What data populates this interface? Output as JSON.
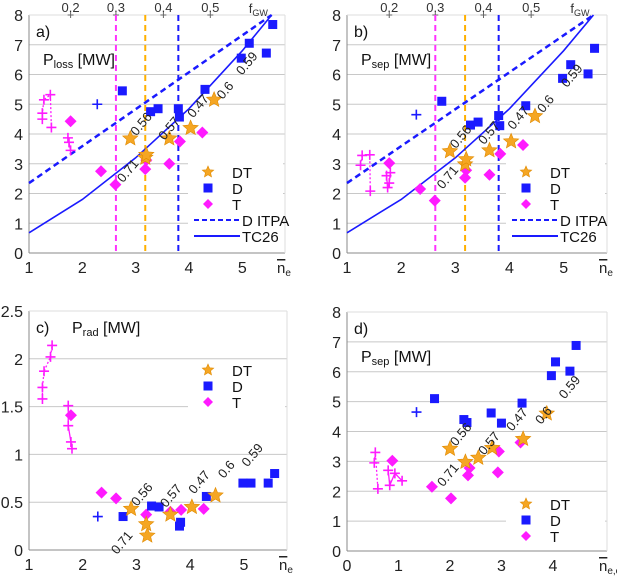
{
  "colors": {
    "DT": "#f5a623",
    "D": "#1a1aff",
    "T": "#ff1aff",
    "grid": "#c8c8c8",
    "axis": "#888888",
    "vline_T": "#ff33ff",
    "vline_DT": "#ffb000",
    "vline_D": "#1a1aff"
  },
  "chart_data": [
    {
      "type": "scatter",
      "panel": "a)",
      "title_main": "P",
      "title_sub": "loss",
      "title_unit": " [MW]",
      "xlabel": "n",
      "xlabel_sub": "e",
      "xlim": [
        1,
        5.8
      ],
      "ylim": [
        0,
        8
      ],
      "xticks": [
        1,
        2,
        3,
        4,
        5
      ],
      "yticks": [
        0,
        1,
        2,
        3,
        4,
        5,
        6,
        7,
        8
      ],
      "grid": true,
      "legend": "bottom-right",
      "top_axis": {
        "label": "f",
        "label_sub": "GW",
        "ticks": [
          {
            "label": "0.2",
            "x": 1.78
          },
          {
            "label": "0.3",
            "x": 2.63
          },
          {
            "label": "0.4",
            "x": 3.52
          },
          {
            "label": "0.5",
            "x": 4.4
          }
        ],
        "label_x": 5.3
      },
      "vlines": [
        {
          "x": 2.63,
          "color": "vline_T"
        },
        {
          "x": 3.18,
          "color": "vline_DT"
        },
        {
          "x": 3.8,
          "color": "vline_D"
        }
      ],
      "series": [
        {
          "name": "DT",
          "marker": "star",
          "points": [
            [
              2.9,
              3.85,
              "0.56"
            ],
            [
              3.18,
              3.2,
              "0.71"
            ],
            [
              3.2,
              3.3,
              "0.57"
            ],
            [
              3.63,
              3.85,
              "0.47"
            ],
            [
              4.03,
              4.2,
              "0.6"
            ],
            [
              4.47,
              5.15,
              "0.59"
            ]
          ]
        },
        {
          "name": "D",
          "marker": "square",
          "points": [
            [
              2.75,
              5.45
            ],
            [
              3.28,
              4.75
            ],
            [
              3.42,
              4.85
            ],
            [
              3.8,
              4.85
            ],
            [
              3.82,
              4.57
            ],
            [
              4.3,
              5.5
            ],
            [
              4.98,
              6.55
            ],
            [
              5.13,
              7.05
            ],
            [
              5.45,
              6.72
            ],
            [
              5.57,
              7.68
            ]
          ]
        },
        {
          "name": "T",
          "marker": "diamond",
          "points": [
            [
              1.78,
              4.43
            ],
            [
              2.35,
              2.75
            ],
            [
              2.62,
              2.3
            ],
            [
              3.18,
              2.82
            ],
            [
              3.2,
              3.12
            ],
            [
              3.63,
              3.0
            ],
            [
              3.83,
              3.75
            ],
            [
              4.25,
              4.05
            ]
          ]
        },
        {
          "name": "D ITPA",
          "line": "dashed",
          "points": [
            [
              1,
              2.35
            ],
            [
              5.55,
              8
            ]
          ]
        },
        {
          "name": "TC26",
          "line": "solid",
          "points": [
            [
              1,
              0.68
            ],
            [
              2,
              1.8
            ],
            [
              3,
              3.2
            ],
            [
              4,
              4.85
            ],
            [
              5,
              6.8
            ],
            [
              5.55,
              8
            ]
          ]
        }
      ],
      "extra": [
        {
          "marker": "cross",
          "color": "T",
          "line": "dotted",
          "points": [
            [
              1.25,
              4.5
            ],
            [
              1.25,
              4.7
            ],
            [
              1.28,
              5.15
            ],
            [
              1.4,
              5.32
            ],
            [
              1.42,
              4.22
            ]
          ]
        },
        {
          "marker": "cross",
          "color": "T",
          "line": "solid",
          "points": [
            [
              1.73,
              3.87
            ],
            [
              1.75,
              3.72
            ],
            [
              1.78,
              3.45
            ]
          ]
        },
        {
          "marker": "cross",
          "color": "D",
          "points": [
            [
              2.28,
              5.0
            ]
          ]
        }
      ]
    },
    {
      "type": "scatter",
      "panel": "b)",
      "title_main": "P",
      "title_sub": "sep",
      "title_unit": " [MW]",
      "xlabel": "n",
      "xlabel_sub": "e",
      "xlim": [
        1,
        5.8
      ],
      "ylim": [
        0,
        8
      ],
      "xticks": [
        1,
        2,
        3,
        4,
        5
      ],
      "yticks": [
        0,
        1,
        2,
        3,
        4,
        5,
        6,
        7,
        8
      ],
      "grid": true,
      "legend": "bottom-right",
      "top_axis": {
        "label": "f",
        "label_sub": "GW",
        "ticks": [
          {
            "label": "0.2",
            "x": 1.78
          },
          {
            "label": "0.3",
            "x": 2.63
          },
          {
            "label": "0.4",
            "x": 3.52
          },
          {
            "label": "0.5",
            "x": 4.4
          }
        ],
        "label_x": 5.3
      },
      "vlines": [
        {
          "x": 2.63,
          "color": "vline_T"
        },
        {
          "x": 3.18,
          "color": "vline_DT"
        },
        {
          "x": 3.8,
          "color": "vline_D"
        }
      ],
      "series": [
        {
          "name": "DT",
          "marker": "star",
          "points": [
            [
              2.9,
              3.42,
              "0.56"
            ],
            [
              3.18,
              2.98,
              "0.71"
            ],
            [
              3.2,
              3.15,
              "0.57"
            ],
            [
              3.63,
              3.45,
              "0.47"
            ],
            [
              4.03,
              3.75,
              "0.6"
            ],
            [
              4.47,
              4.6,
              "0.59"
            ]
          ]
        },
        {
          "name": "D",
          "marker": "square",
          "points": [
            [
              2.75,
              5.1
            ],
            [
              3.28,
              4.3
            ],
            [
              3.42,
              4.4
            ],
            [
              3.8,
              4.62
            ],
            [
              3.82,
              4.28
            ],
            [
              4.3,
              4.95
            ],
            [
              4.98,
              5.87
            ],
            [
              5.13,
              6.33
            ],
            [
              5.45,
              6.02
            ],
            [
              5.57,
              6.88
            ]
          ]
        },
        {
          "name": "T",
          "marker": "diamond",
          "points": [
            [
              1.78,
              3.02
            ],
            [
              2.35,
              2.15
            ],
            [
              2.62,
              1.76
            ],
            [
              3.18,
              2.53
            ],
            [
              3.2,
              2.78
            ],
            [
              3.63,
              2.63
            ],
            [
              3.83,
              3.33
            ],
            [
              4.25,
              3.63
            ]
          ]
        },
        {
          "name": "D ITPA",
          "line": "dashed",
          "points": [
            [
              1,
              2.35
            ],
            [
              5.55,
              8
            ]
          ]
        },
        {
          "name": "TC26",
          "line": "solid",
          "points": [
            [
              1,
              0.68
            ],
            [
              2,
              1.8
            ],
            [
              3,
              3.2
            ],
            [
              4,
              4.85
            ],
            [
              5,
              6.8
            ],
            [
              5.55,
              8
            ]
          ]
        }
      ],
      "extra": [
        {
          "marker": "cross",
          "color": "T",
          "line": "dotted",
          "points": [
            [
              1.25,
              2.95
            ],
            [
              1.28,
              3.28
            ],
            [
              1.42,
              3.3
            ],
            [
              1.43,
              2.08
            ]
          ]
        },
        {
          "marker": "cross",
          "color": "T",
          "line": "solid",
          "points": [
            [
              1.73,
              2.6
            ],
            [
              1.75,
              2.2
            ],
            [
              1.78,
              2.35
            ],
            [
              1.8,
              2.7
            ]
          ]
        },
        {
          "marker": "cross",
          "color": "D",
          "points": [
            [
              2.28,
              4.65
            ]
          ]
        }
      ]
    },
    {
      "type": "scatter",
      "panel": "c)",
      "title_main": "P",
      "title_sub": "rad",
      "title_unit": " [MW]",
      "xlabel": "n",
      "xlabel_sub": "e",
      "xlim": [
        1,
        5.8
      ],
      "ylim": [
        0,
        2.5
      ],
      "xticks": [
        1,
        2,
        3,
        4,
        5
      ],
      "yticks": [
        0,
        0.5,
        1,
        1.5,
        2,
        2.5
      ],
      "grid": true,
      "legend": "top-right",
      "series": [
        {
          "name": "DT",
          "marker": "star",
          "points": [
            [
              2.9,
              0.43,
              "0.56"
            ],
            [
              3.2,
              0.15,
              "0.71"
            ],
            [
              3.18,
              0.27,
              "0.57"
            ],
            [
              3.63,
              0.37,
              "0.47"
            ],
            [
              4.03,
              0.45,
              "0.6"
            ],
            [
              4.47,
              0.57,
              "0.59"
            ]
          ]
        },
        {
          "name": "D",
          "marker": "square",
          "points": [
            [
              2.75,
              0.35
            ],
            [
              3.28,
              0.46
            ],
            [
              3.42,
              0.45
            ],
            [
              3.8,
              0.25
            ],
            [
              3.82,
              0.29
            ],
            [
              4.3,
              0.56
            ],
            [
              4.98,
              0.7
            ],
            [
              5.13,
              0.7
            ],
            [
              5.45,
              0.7
            ],
            [
              5.57,
              0.8
            ]
          ]
        },
        {
          "name": "T",
          "marker": "diamond",
          "points": [
            [
              1.78,
              1.41
            ],
            [
              2.35,
              0.6
            ],
            [
              2.62,
              0.54
            ],
            [
              3.18,
              0.37
            ],
            [
              3.63,
              0.4
            ],
            [
              3.83,
              0.42
            ],
            [
              4.25,
              0.43
            ]
          ]
        }
      ],
      "extra": [
        {
          "marker": "cross",
          "color": "T",
          "line": "dotted",
          "points": [
            [
              1.25,
              1.58
            ],
            [
              1.25,
              1.7
            ],
            [
              1.28,
              1.87
            ],
            [
              1.4,
              2.02
            ],
            [
              1.43,
              2.14
            ]
          ]
        },
        {
          "marker": "cross",
          "color": "T",
          "line": "solid",
          "points": [
            [
              1.73,
              1.51
            ],
            [
              1.73,
              1.3
            ],
            [
              1.78,
              1.13
            ],
            [
              1.8,
              1.06
            ]
          ]
        },
        {
          "marker": "cross",
          "color": "D",
          "points": [
            [
              2.28,
              0.35
            ]
          ]
        }
      ]
    },
    {
      "type": "scatter",
      "panel": "d)",
      "title_main": "P",
      "title_sub": "sep",
      "title_unit": " [MW]",
      "xlabel": "n",
      "xlabel_sub": "e,edge",
      "xlim": [
        0,
        5.05
      ],
      "ylim": [
        0,
        8
      ],
      "xticks": [
        0,
        1,
        2,
        3,
        4
      ],
      "yticks": [
        0,
        1,
        2,
        3,
        4,
        5,
        6,
        7,
        8
      ],
      "grid": true,
      "legend": "bottom-right",
      "series": [
        {
          "name": "DT",
          "marker": "star",
          "points": [
            [
              2.0,
              3.42,
              "0.56"
            ],
            [
              2.3,
              2.98,
              "0.71"
            ],
            [
              2.55,
              3.12,
              "0.57"
            ],
            [
              2.82,
              3.45,
              "0.47"
            ],
            [
              3.42,
              3.75,
              "0.6"
            ],
            [
              3.88,
              4.6,
              "0.59"
            ]
          ]
        },
        {
          "name": "D",
          "marker": "square",
          "points": [
            [
              1.7,
              5.1
            ],
            [
              2.27,
              4.4
            ],
            [
              2.33,
              4.3
            ],
            [
              2.8,
              4.62
            ],
            [
              3.0,
              4.28
            ],
            [
              3.4,
              4.95
            ],
            [
              3.97,
              5.87
            ],
            [
              4.05,
              6.33
            ],
            [
              4.33,
              6.02
            ],
            [
              4.45,
              6.88
            ]
          ]
        },
        {
          "name": "T",
          "marker": "diamond",
          "points": [
            [
              0.88,
              3.02
            ],
            [
              1.65,
              2.15
            ],
            [
              2.02,
              1.76
            ],
            [
              2.35,
              2.53
            ],
            [
              2.38,
              2.78
            ],
            [
              2.93,
              2.63
            ],
            [
              2.95,
              3.33
            ],
            [
              3.37,
              3.63
            ]
          ]
        }
      ],
      "extra": [
        {
          "marker": "cross",
          "color": "T",
          "line": "dotted",
          "points": [
            [
              0.53,
              2.95
            ],
            [
              0.55,
              3.3
            ],
            [
              0.6,
              2.08
            ]
          ]
        },
        {
          "marker": "cross",
          "color": "T",
          "line": "solid",
          "points": [
            [
              0.8,
              2.7
            ],
            [
              0.83,
              2.2
            ],
            [
              0.93,
              2.6
            ],
            [
              1.07,
              2.35
            ]
          ]
        },
        {
          "marker": "cross",
          "color": "D",
          "points": [
            [
              1.35,
              4.65
            ]
          ]
        }
      ]
    }
  ]
}
